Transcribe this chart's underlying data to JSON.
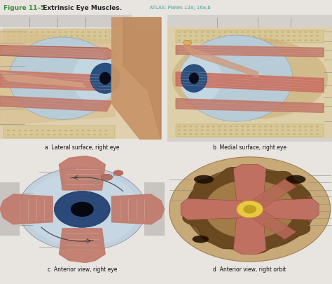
{
  "title_bold": "Figure 11–5",
  "title_desc": "  Extrinsic Eye Muscles.",
  "title_atlas": "  ATLAS: Plates 12a; 16a,b",
  "bg_color": "#e8e4df",
  "panel_bg_top": "#c8c4c0",
  "panel_bg_bottom": "#c0bcb8",
  "label_a": "a  Lateral surface, right eye",
  "label_b": "b  Medial surface, right eye",
  "label_c": "c  Anterior view, right eye",
  "label_d": "d  Anterior view, right orbit",
  "title_color": "#3a8a3a",
  "atlas_color": "#40a0a0",
  "desc_color": "#222222",
  "skin_color": "#c8956a",
  "muscle_color_light": "#d4958a",
  "muscle_color": "#c07868",
  "eye_white": "#c8dce8",
  "eye_blue_dark": "#1a3060",
  "eye_blue": "#3060a0",
  "bone_color": "#d8c898",
  "bone_dark": "#c0a870",
  "orbit_bg": "#b89868",
  "orbit_dark": "#7a5828",
  "line_color": "#888888",
  "arrow_color": "#666666",
  "white_label": "#f0f0f0"
}
